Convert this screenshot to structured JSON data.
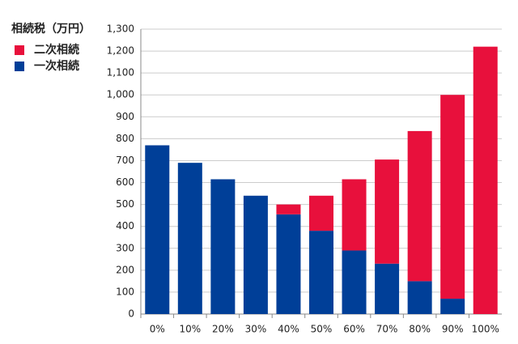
{
  "chart_data": {
    "type": "stacked_bar",
    "title": "相続税（万円）",
    "categories": [
      "0%",
      "10%",
      "20%",
      "30%",
      "40%",
      "50%",
      "60%",
      "70%",
      "80%",
      "90%",
      "100%"
    ],
    "series": [
      {
        "name": "一次相続",
        "color": "#003f98",
        "values": [
          770,
          690,
          615,
          540,
          455,
          380,
          290,
          230,
          150,
          70,
          0
        ]
      },
      {
        "name": "二次相続",
        "color": "#e8103c",
        "values": [
          0,
          0,
          0,
          0,
          45,
          160,
          325,
          475,
          685,
          930,
          1220
        ]
      }
    ],
    "ylim": [
      0,
      1300
    ],
    "yticks": [
      0,
      100,
      200,
      300,
      400,
      500,
      600,
      700,
      800,
      900,
      {
        "value": 1000,
        "label": "1,000"
      },
      {
        "value": 1100,
        "label": "1,100"
      },
      {
        "value": 1200,
        "label": "1,200"
      },
      {
        "value": 1300,
        "label": "1,300"
      }
    ],
    "grid": true,
    "legend": "top-left"
  }
}
